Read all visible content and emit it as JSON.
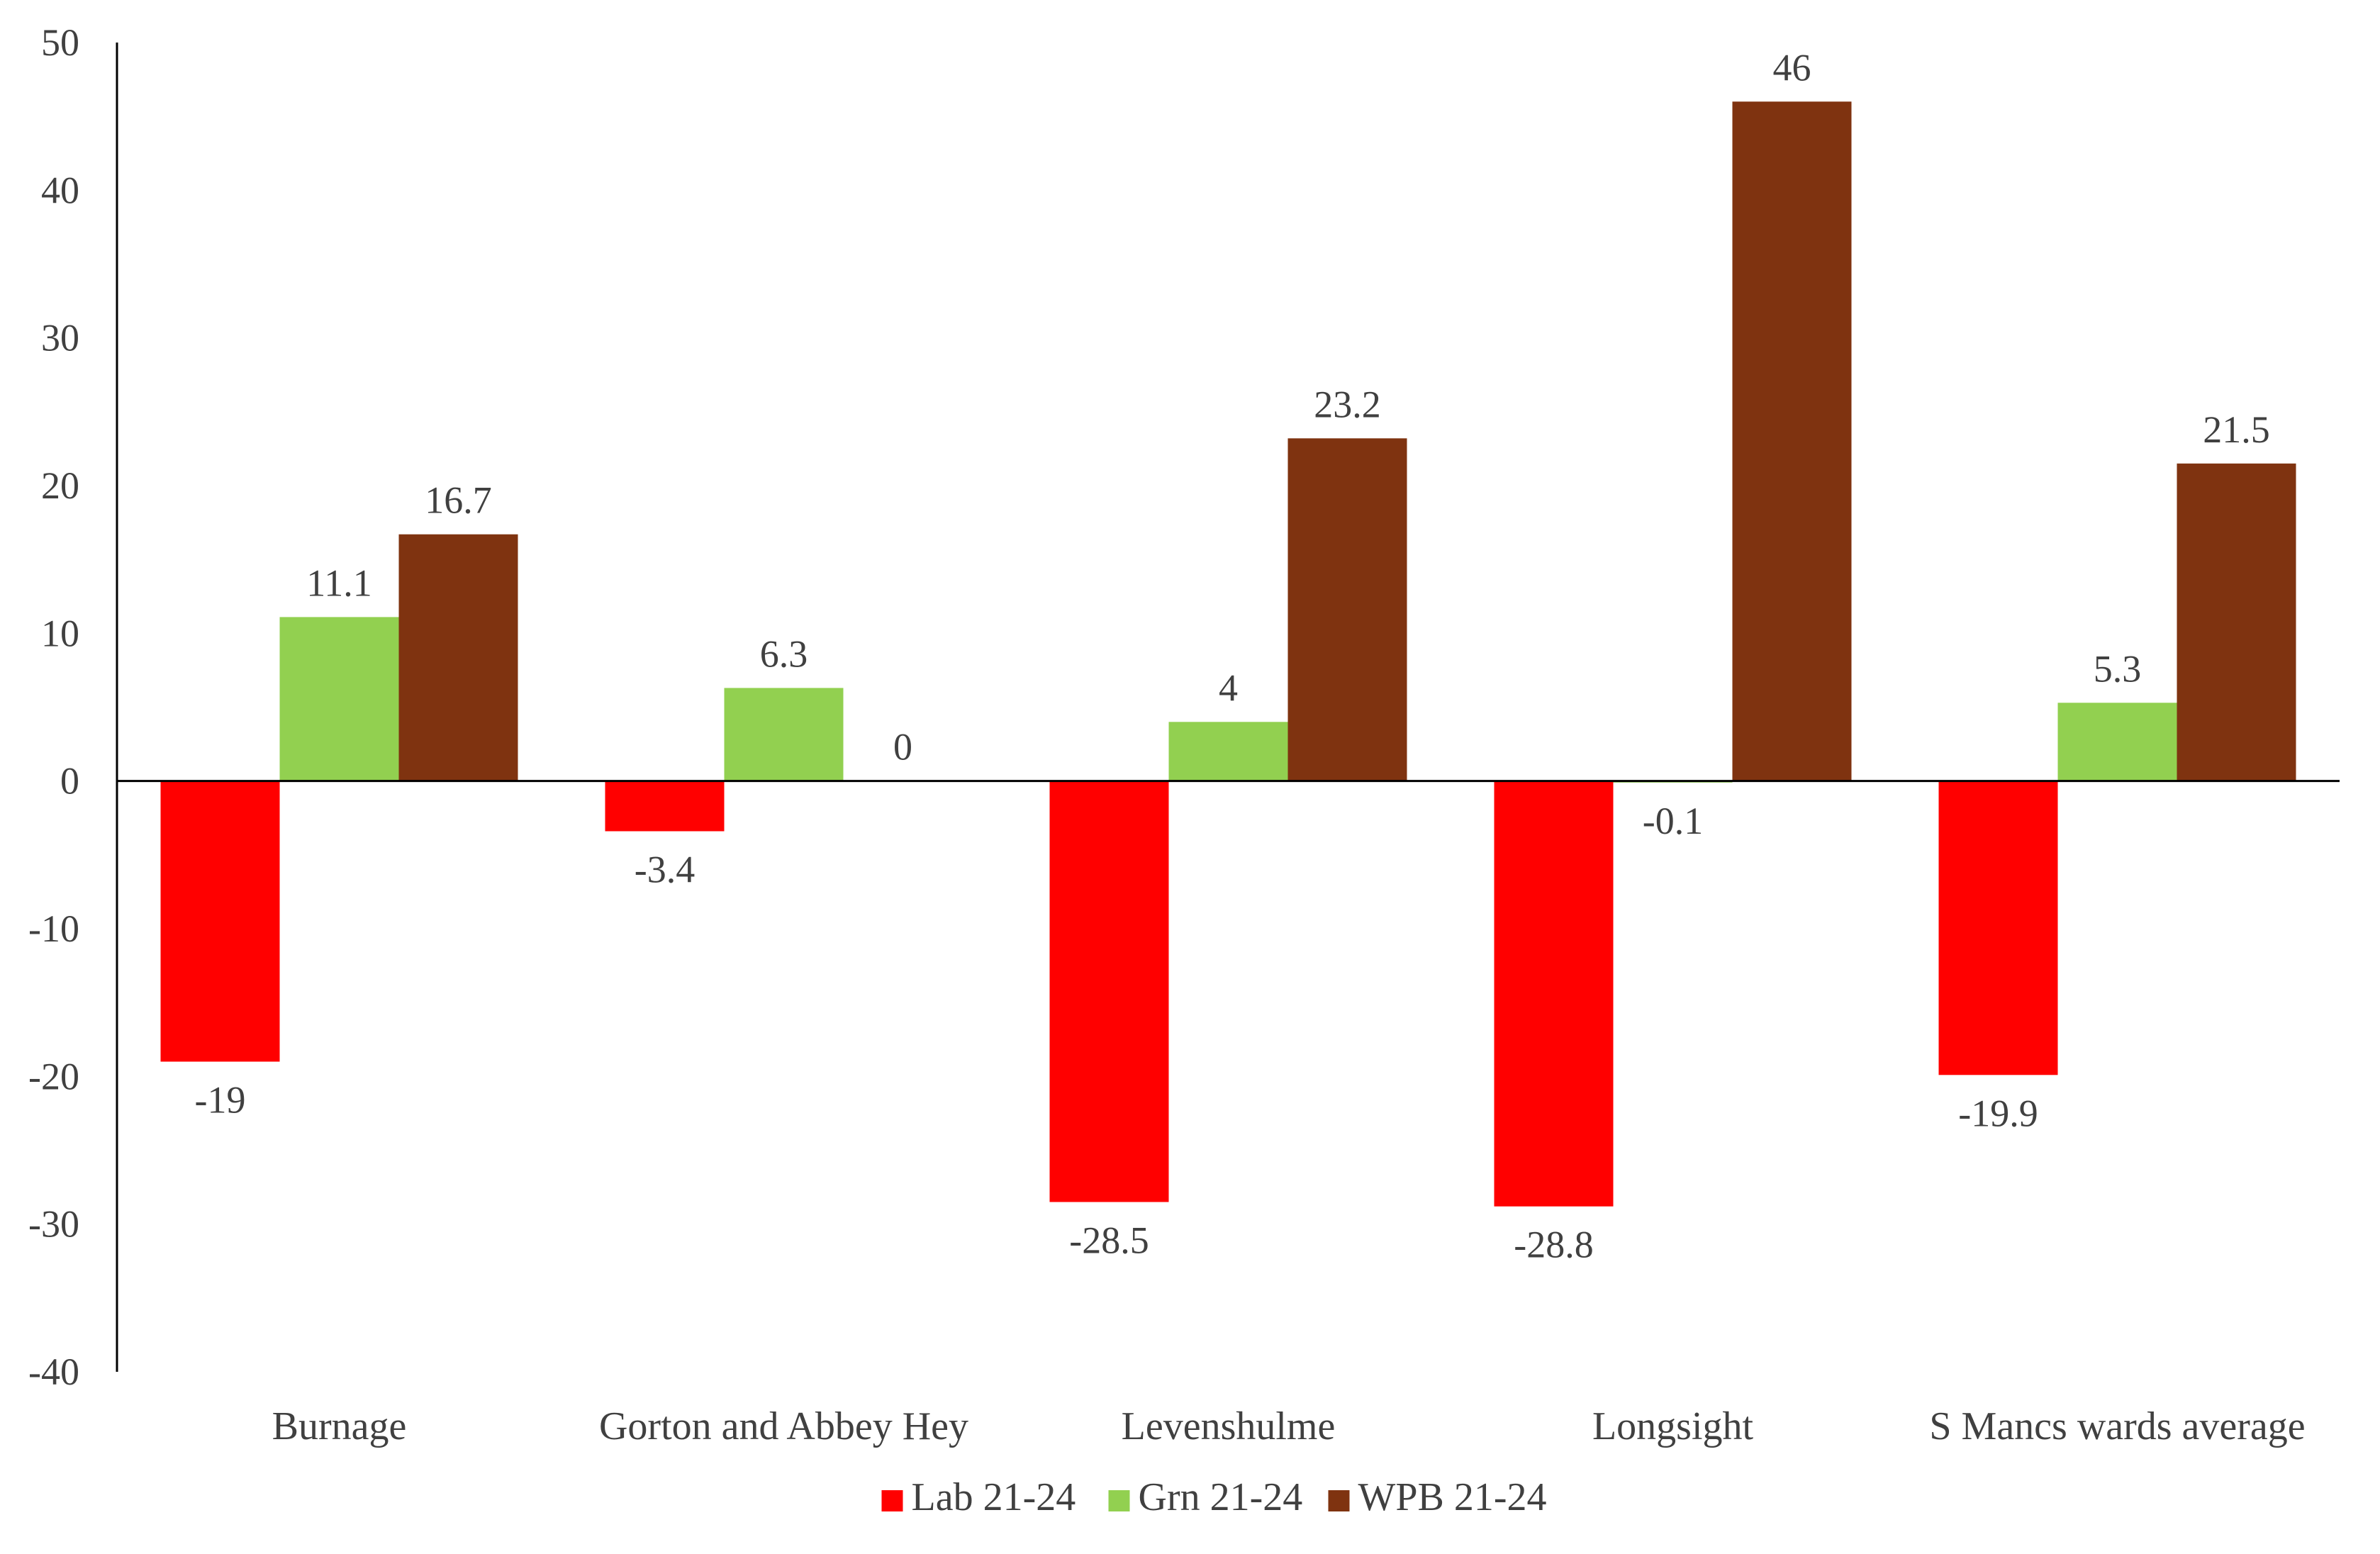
{
  "chart_data": {
    "type": "bar",
    "title": "",
    "xlabel": "",
    "ylabel": "",
    "ylim": [
      -40,
      50
    ],
    "yticks": [
      "-40",
      "-30",
      "-20",
      "-10",
      "0",
      "10",
      "20",
      "30",
      "40",
      "50"
    ],
    "ytick_values": [
      -40,
      -30,
      -20,
      -10,
      0,
      10,
      20,
      30,
      40,
      50
    ],
    "grid": false,
    "legend_position": "bottom-center",
    "categories": [
      "Burnage",
      "Gorton and Abbey Hey",
      "Levenshulme",
      "Longsight",
      "S Mancs wards average"
    ],
    "series": [
      {
        "name": "Lab 21-24",
        "color": "#ff0000",
        "values": [
          -19,
          -3.4,
          -28.5,
          -28.8,
          -19.9
        ],
        "labels": [
          "-19",
          "-3.4",
          "-28.5",
          "-28.8",
          "-19.9"
        ]
      },
      {
        "name": "Grn 21-24",
        "color": "#92d050",
        "values": [
          11.1,
          6.3,
          4,
          -0.1,
          5.3
        ],
        "labels": [
          "11.1",
          "6.3",
          "4",
          "-0.1",
          "5.3"
        ]
      },
      {
        "name": "WPB 21-24",
        "color": "#7f3310",
        "values": [
          16.7,
          0,
          23.2,
          46,
          21.5
        ],
        "labels": [
          "16.7",
          "0",
          "23.2",
          "46",
          "21.5"
        ]
      }
    ]
  }
}
